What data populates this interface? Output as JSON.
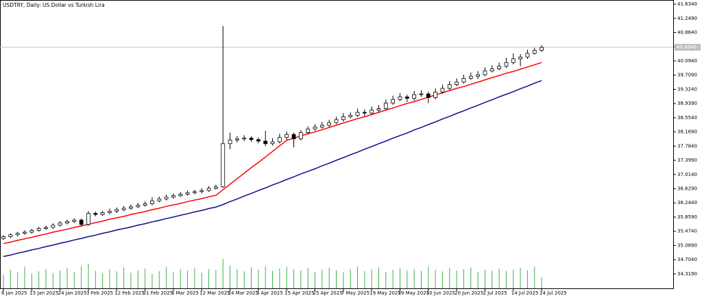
{
  "chart_data": {
    "type": "candlestick",
    "title": "USDTRY, Daily:  US Dollar vs Turkish Lira",
    "categories": [
      "6 Jan 2025",
      null,
      null,
      null,
      "15 Jan 2025",
      null,
      null,
      null,
      "24 Jan 2025",
      null,
      null,
      null,
      "3 Feb 2025",
      null,
      null,
      null,
      "12 Feb 2025",
      null,
      null,
      null,
      "21 Feb 2025",
      null,
      null,
      null,
      "3 Mar 2025",
      null,
      null,
      null,
      "12 Mar 2025",
      null,
      null,
      null,
      "24 Mar 2025",
      null,
      null,
      null,
      "3 Apr 2025",
      null,
      null,
      null,
      "15 Apr 2025",
      null,
      null,
      null,
      "25 Apr 2025",
      null,
      null,
      null,
      "7 May 2025",
      null,
      null,
      null,
      "19 May 2025",
      null,
      null,
      null,
      "29 May 2025",
      null,
      null,
      null,
      "10 Jun 2025",
      null,
      null,
      null,
      "20 Jun 2025",
      null,
      null,
      null,
      "2 Jul 2025",
      null,
      null,
      null,
      "14 Jul 2025",
      null,
      null,
      null,
      "24 Jul 2025"
    ],
    "ohlc": [
      [
        35.28,
        35.37,
        35.24,
        35.33
      ],
      [
        35.33,
        35.42,
        35.29,
        35.38
      ],
      [
        35.38,
        35.46,
        35.34,
        35.42
      ],
      [
        35.42,
        35.5,
        35.38,
        35.45
      ],
      [
        35.45,
        35.54,
        35.41,
        35.5
      ],
      [
        35.5,
        35.6,
        35.46,
        35.55
      ],
      [
        35.55,
        35.63,
        35.51,
        35.58
      ],
      [
        35.58,
        35.69,
        35.54,
        35.64
      ],
      [
        35.64,
        35.75,
        35.6,
        35.7
      ],
      [
        35.7,
        35.79,
        35.66,
        35.74
      ],
      [
        35.74,
        35.83,
        35.7,
        35.78
      ],
      [
        35.78,
        35.82,
        35.6,
        35.66
      ],
      [
        35.66,
        36.02,
        35.62,
        35.96
      ],
      [
        35.96,
        36.01,
        35.88,
        35.93
      ],
      [
        35.93,
        36.03,
        35.89,
        35.98
      ],
      [
        35.98,
        36.09,
        35.94,
        36.02
      ],
      [
        36.02,
        36.12,
        35.97,
        36.06
      ],
      [
        36.06,
        36.16,
        36.02,
        36.1
      ],
      [
        36.1,
        36.2,
        36.06,
        36.14
      ],
      [
        36.14,
        36.24,
        36.1,
        36.18
      ],
      [
        36.18,
        36.28,
        36.14,
        36.22
      ],
      [
        36.22,
        36.4,
        36.18,
        36.3
      ],
      [
        36.3,
        36.42,
        36.26,
        36.35
      ],
      [
        36.35,
        36.47,
        36.31,
        36.4
      ],
      [
        36.4,
        36.5,
        36.36,
        36.44
      ],
      [
        36.44,
        36.54,
        36.4,
        36.48
      ],
      [
        36.48,
        36.58,
        36.44,
        36.52
      ],
      [
        36.52,
        36.6,
        36.48,
        36.55
      ],
      [
        36.55,
        36.64,
        36.5,
        36.58
      ],
      [
        36.58,
        36.7,
        36.54,
        36.64
      ],
      [
        36.64,
        36.74,
        36.6,
        36.68
      ],
      [
        36.68,
        41.04,
        36.65,
        37.85
      ],
      [
        37.85,
        38.15,
        37.7,
        37.95
      ],
      [
        37.95,
        38.06,
        37.88,
        37.98
      ],
      [
        37.98,
        38.08,
        37.92,
        38.0
      ],
      [
        38.0,
        38.05,
        37.9,
        37.96
      ],
      [
        37.96,
        38.02,
        37.86,
        37.92
      ],
      [
        37.92,
        38.2,
        37.78,
        37.85
      ],
      [
        37.85,
        38.0,
        37.8,
        37.9
      ],
      [
        37.9,
        38.12,
        37.86,
        38.02
      ],
      [
        38.02,
        38.18,
        37.95,
        38.1
      ],
      [
        38.1,
        38.15,
        37.75,
        37.98
      ],
      [
        37.98,
        38.22,
        37.94,
        38.15
      ],
      [
        38.15,
        38.32,
        38.1,
        38.25
      ],
      [
        38.25,
        38.38,
        38.2,
        38.3
      ],
      [
        38.3,
        38.44,
        38.26,
        38.35
      ],
      [
        38.35,
        38.5,
        38.3,
        38.42
      ],
      [
        38.42,
        38.58,
        38.38,
        38.5
      ],
      [
        38.5,
        38.68,
        38.45,
        38.58
      ],
      [
        38.58,
        38.7,
        38.54,
        38.62
      ],
      [
        38.62,
        38.8,
        38.58,
        38.7
      ],
      [
        38.7,
        38.78,
        38.6,
        38.68
      ],
      [
        38.68,
        38.86,
        38.64,
        38.76
      ],
      [
        38.76,
        38.9,
        38.7,
        38.8
      ],
      [
        38.8,
        39.05,
        38.76,
        38.95
      ],
      [
        38.95,
        39.15,
        38.9,
        39.05
      ],
      [
        39.05,
        39.22,
        39.0,
        39.12
      ],
      [
        39.12,
        39.18,
        38.98,
        39.08
      ],
      [
        39.08,
        39.28,
        39.02,
        39.18
      ],
      [
        39.18,
        39.3,
        39.12,
        39.2
      ],
      [
        39.2,
        39.26,
        38.95,
        39.1
      ],
      [
        39.1,
        39.35,
        39.05,
        39.25
      ],
      [
        39.25,
        39.45,
        39.2,
        39.35
      ],
      [
        39.35,
        39.55,
        39.3,
        39.45
      ],
      [
        39.45,
        39.62,
        39.4,
        39.52
      ],
      [
        39.52,
        39.72,
        39.48,
        39.62
      ],
      [
        39.62,
        39.78,
        39.58,
        39.68
      ],
      [
        39.68,
        39.82,
        39.6,
        39.72
      ],
      [
        39.72,
        39.92,
        39.68,
        39.82
      ],
      [
        39.82,
        39.98,
        39.78,
        39.88
      ],
      [
        39.88,
        40.05,
        39.84,
        39.95
      ],
      [
        39.95,
        40.18,
        39.9,
        40.05
      ],
      [
        40.05,
        40.3,
        40.0,
        40.15
      ],
      [
        40.15,
        40.28,
        39.95,
        40.2
      ],
      [
        40.2,
        40.4,
        40.15,
        40.3
      ],
      [
        40.3,
        40.45,
        40.26,
        40.38
      ],
      [
        40.38,
        40.52,
        40.34,
        40.46
      ]
    ],
    "lines": [
      {
        "color": "#ff0000",
        "values": [
          35.14,
          35.18,
          35.23,
          35.27,
          35.31,
          35.36,
          35.4,
          35.45,
          35.49,
          35.53,
          35.58,
          35.62,
          35.66,
          35.71,
          35.75,
          35.8,
          35.84,
          35.88,
          35.93,
          35.97,
          36.01,
          36.06,
          36.1,
          36.15,
          36.19,
          36.23,
          36.28,
          36.32,
          36.36,
          36.41,
          36.45,
          36.6,
          36.75,
          36.9,
          37.05,
          37.2,
          37.34,
          37.49,
          37.64,
          37.79,
          37.94,
          38.0,
          38.06,
          38.12,
          38.17,
          38.23,
          38.29,
          38.35,
          38.41,
          38.47,
          38.53,
          38.58,
          38.64,
          38.7,
          38.76,
          38.82,
          38.88,
          38.94,
          38.99,
          39.05,
          39.11,
          39.17,
          39.23,
          39.29,
          39.35,
          39.4,
          39.46,
          39.52,
          39.58,
          39.64,
          39.7,
          39.76,
          39.81,
          39.87,
          39.93,
          39.99,
          40.05
        ]
      },
      {
        "color": "#0a0a8c",
        "values": [
          34.79,
          34.83,
          34.88,
          34.92,
          34.97,
          35.01,
          35.06,
          35.1,
          35.15,
          35.19,
          35.24,
          35.28,
          35.33,
          35.37,
          35.42,
          35.46,
          35.51,
          35.55,
          35.59,
          35.64,
          35.68,
          35.73,
          35.77,
          35.82,
          35.86,
          35.91,
          35.95,
          36.0,
          36.04,
          36.09,
          36.13,
          36.2,
          36.28,
          36.35,
          36.43,
          36.5,
          36.58,
          36.65,
          36.73,
          36.8,
          36.88,
          36.95,
          37.03,
          37.1,
          37.17,
          37.25,
          37.32,
          37.4,
          37.47,
          37.55,
          37.62,
          37.7,
          37.77,
          37.85,
          37.92,
          38.0,
          38.07,
          38.14,
          38.22,
          38.29,
          38.37,
          38.44,
          38.52,
          38.59,
          38.67,
          38.74,
          38.82,
          38.89,
          38.97,
          39.04,
          39.12,
          39.19,
          39.26,
          39.34,
          39.41,
          39.49,
          39.56
        ]
      }
    ],
    "volume": {
      "color": "#3cb043",
      "values": [
        45,
        60,
        52,
        70,
        48,
        55,
        62,
        50,
        58,
        66,
        54,
        72,
        80,
        57,
        49,
        63,
        55,
        68,
        51,
        59,
        64,
        47,
        56,
        70,
        53,
        61,
        58,
        66,
        50,
        62,
        60,
        95,
        74,
        63,
        55,
        68,
        60,
        72,
        57,
        65,
        70,
        62,
        58,
        66,
        54,
        61,
        67,
        59,
        52,
        63,
        70,
        56,
        61,
        68,
        54,
        60,
        65,
        58,
        63,
        57,
        71,
        60,
        55,
        66,
        59,
        62,
        68,
        54,
        60,
        57,
        64,
        56,
        61,
        66,
        58,
        70,
        35
      ]
    },
    "current_price": {
      "value": 40.464,
      "label": "40.4640"
    },
    "ylim": [
      33.927,
      41.746
    ],
    "yticks": [
      {
        "value": 41.634,
        "label": "41.6340"
      },
      {
        "value": 41.249,
        "label": "41.2490"
      },
      {
        "value": 40.864,
        "label": "40.8640"
      },
      {
        "value": 40.479,
        "label": "40.4790"
      },
      {
        "value": 40.094,
        "label": "40.0940"
      },
      {
        "value": 39.709,
        "label": "39.7090"
      },
      {
        "value": 39.324,
        "label": "39.3240"
      },
      {
        "value": 38.939,
        "label": "38.9390"
      },
      {
        "value": 38.554,
        "label": "38.5540"
      },
      {
        "value": 38.169,
        "label": "38.1690"
      },
      {
        "value": 37.784,
        "label": "37.7840"
      },
      {
        "value": 37.399,
        "label": "37.3990"
      },
      {
        "value": 37.014,
        "label": "37.0140"
      },
      {
        "value": 36.629,
        "label": "36.6290"
      },
      {
        "value": 36.244,
        "label": "36.2440"
      },
      {
        "value": 35.859,
        "label": "35.8590"
      },
      {
        "value": 35.474,
        "label": "35.4740"
      },
      {
        "value": 35.089,
        "label": "35.0890"
      },
      {
        "value": 34.704,
        "label": "34.7040"
      },
      {
        "value": 34.319,
        "label": "34.3190"
      }
    ],
    "grid": false
  }
}
